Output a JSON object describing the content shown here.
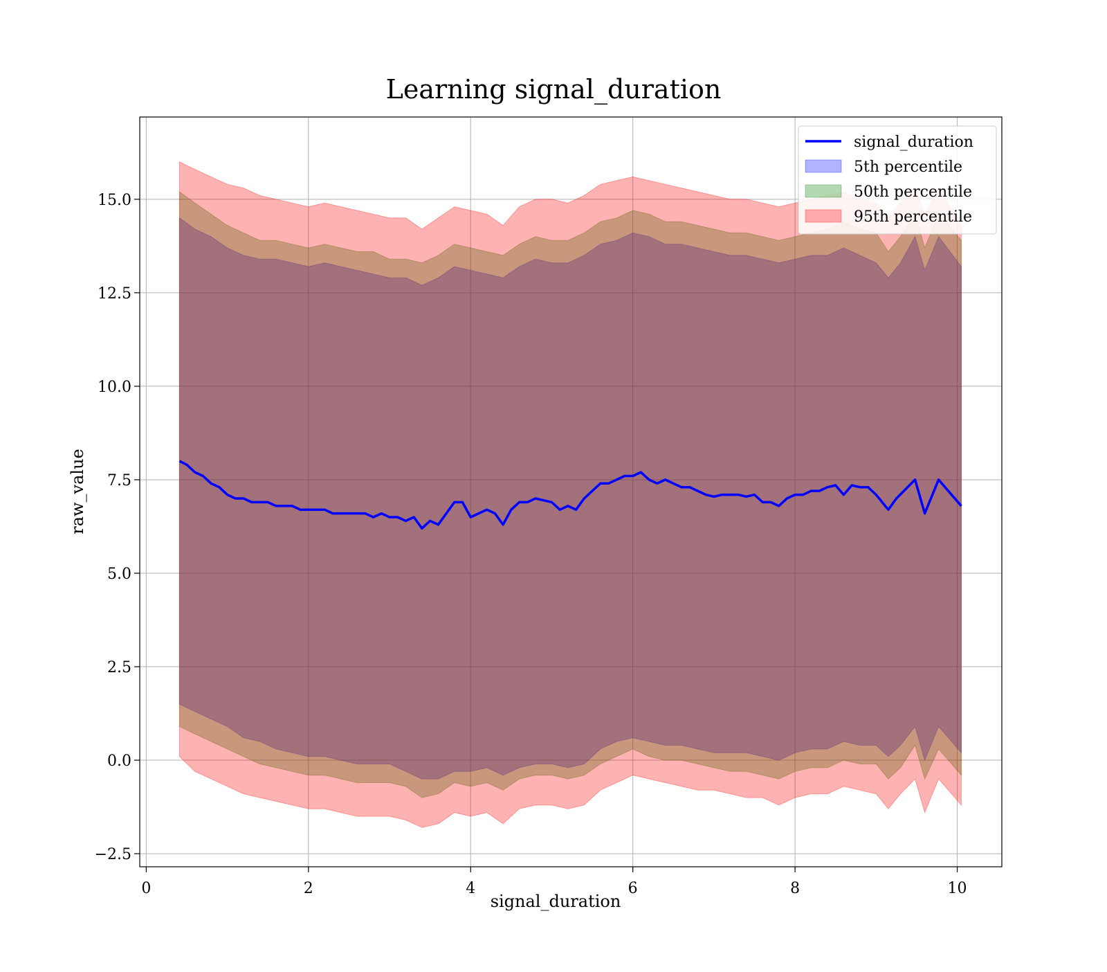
{
  "chart_data": {
    "type": "line",
    "title": "Learning signal_duration",
    "xlabel": "signal_duration",
    "ylabel": "raw_value",
    "xlim": [
      -0.08,
      10.55
    ],
    "ylim": [
      -2.85,
      17.2
    ],
    "xticks": [
      0,
      2,
      4,
      6,
      8,
      10
    ],
    "yticks": [
      -2.5,
      0.0,
      2.5,
      5.0,
      7.5,
      10.0,
      12.5,
      15.0
    ],
    "ytick_labels": [
      "−2.5",
      "0.0",
      "2.5",
      "5.0",
      "7.5",
      "10.0",
      "12.5",
      "15.0"
    ],
    "grid": true,
    "legend_position": "top-right",
    "legend": [
      {
        "label": "signal_duration",
        "kind": "line",
        "color": "#0000ff"
      },
      {
        "label": "5th percentile",
        "kind": "band",
        "color": "#0000ff"
      },
      {
        "label": "50th percentile",
        "kind": "band",
        "color": "#008000"
      },
      {
        "label": "95th percentile",
        "kind": "band",
        "color": "#ff0000"
      }
    ],
    "series": [
      {
        "name": "signal_duration",
        "color": "#0000ff",
        "x": [
          0.41,
          0.5,
          0.6,
          0.7,
          0.8,
          0.9,
          1.0,
          1.1,
          1.2,
          1.3,
          1.4,
          1.5,
          1.6,
          1.7,
          1.8,
          1.9,
          2.0,
          2.1,
          2.2,
          2.3,
          2.4,
          2.5,
          2.6,
          2.7,
          2.8,
          2.9,
          3.0,
          3.1,
          3.2,
          3.3,
          3.4,
          3.5,
          3.6,
          3.7,
          3.8,
          3.9,
          4.0,
          4.1,
          4.2,
          4.3,
          4.4,
          4.5,
          4.6,
          4.7,
          4.8,
          4.9,
          5.0,
          5.1,
          5.2,
          5.3,
          5.4,
          5.5,
          5.6,
          5.7,
          5.8,
          5.9,
          6.0,
          6.1,
          6.2,
          6.3,
          6.4,
          6.5,
          6.6,
          6.7,
          6.8,
          6.9,
          7.0,
          7.1,
          7.2,
          7.3,
          7.4,
          7.5,
          7.6,
          7.7,
          7.8,
          7.9,
          8.0,
          8.1,
          8.2,
          8.3,
          8.4,
          8.5,
          8.6,
          8.7,
          8.8,
          8.9,
          9.0,
          9.15,
          9.25,
          9.48,
          9.6,
          9.77,
          10.05
        ],
        "values": [
          8.0,
          7.9,
          7.7,
          7.6,
          7.4,
          7.3,
          7.1,
          7.0,
          7.0,
          6.9,
          6.9,
          6.9,
          6.8,
          6.8,
          6.8,
          6.7,
          6.7,
          6.7,
          6.7,
          6.6,
          6.6,
          6.6,
          6.6,
          6.6,
          6.5,
          6.6,
          6.5,
          6.5,
          6.4,
          6.5,
          6.2,
          6.4,
          6.3,
          6.6,
          6.9,
          6.9,
          6.5,
          6.6,
          6.7,
          6.6,
          6.3,
          6.7,
          6.9,
          6.9,
          7.0,
          6.95,
          6.9,
          6.7,
          6.8,
          6.7,
          7.0,
          7.2,
          7.4,
          7.4,
          7.5,
          7.6,
          7.6,
          7.7,
          7.5,
          7.4,
          7.5,
          7.4,
          7.3,
          7.3,
          7.2,
          7.1,
          7.05,
          7.1,
          7.1,
          7.1,
          7.05,
          7.1,
          6.9,
          6.9,
          6.8,
          7.0,
          7.1,
          7.1,
          7.2,
          7.2,
          7.3,
          7.35,
          7.1,
          7.35,
          7.3,
          7.3,
          7.1,
          6.7,
          7.0,
          7.5,
          6.6,
          7.5,
          6.8
        ]
      }
    ],
    "bands": [
      {
        "name": "5th percentile",
        "color": "#0000ff",
        "opacity": 0.3,
        "x": [
          0.41,
          0.6,
          0.8,
          1.0,
          1.2,
          1.4,
          1.6,
          1.8,
          2.0,
          2.2,
          2.4,
          2.6,
          2.8,
          3.0,
          3.2,
          3.4,
          3.6,
          3.8,
          4.0,
          4.2,
          4.4,
          4.6,
          4.8,
          5.0,
          5.2,
          5.4,
          5.6,
          5.8,
          6.0,
          6.2,
          6.4,
          6.6,
          6.8,
          7.0,
          7.2,
          7.4,
          7.6,
          7.8,
          8.0,
          8.2,
          8.4,
          8.6,
          8.8,
          9.0,
          9.15,
          9.3,
          9.48,
          9.6,
          9.77,
          10.05
        ],
        "lower": [
          1.5,
          1.3,
          1.1,
          0.9,
          0.6,
          0.5,
          0.3,
          0.2,
          0.1,
          0.1,
          0.0,
          -0.1,
          -0.1,
          -0.1,
          -0.3,
          -0.5,
          -0.5,
          -0.3,
          -0.3,
          -0.2,
          -0.4,
          -0.2,
          -0.1,
          -0.1,
          -0.2,
          -0.1,
          0.3,
          0.5,
          0.6,
          0.5,
          0.4,
          0.4,
          0.3,
          0.2,
          0.2,
          0.2,
          0.1,
          0.0,
          0.2,
          0.3,
          0.3,
          0.5,
          0.4,
          0.4,
          0.1,
          0.4,
          0.9,
          0.0,
          0.9,
          0.2
        ],
        "upper": [
          14.5,
          14.2,
          14.0,
          13.7,
          13.5,
          13.4,
          13.4,
          13.3,
          13.2,
          13.3,
          13.2,
          13.1,
          13.0,
          12.9,
          12.9,
          12.7,
          12.9,
          13.2,
          13.1,
          13.0,
          12.9,
          13.2,
          13.4,
          13.3,
          13.3,
          13.5,
          13.8,
          13.9,
          14.1,
          14.0,
          13.8,
          13.8,
          13.7,
          13.6,
          13.5,
          13.5,
          13.4,
          13.3,
          13.4,
          13.5,
          13.5,
          13.7,
          13.5,
          13.3,
          12.9,
          13.3,
          14.0,
          13.1,
          14.0,
          13.2
        ]
      },
      {
        "name": "50th percentile",
        "color": "#008000",
        "opacity": 0.3,
        "x": [
          0.41,
          0.6,
          0.8,
          1.0,
          1.2,
          1.4,
          1.6,
          1.8,
          2.0,
          2.2,
          2.4,
          2.6,
          2.8,
          3.0,
          3.2,
          3.4,
          3.6,
          3.8,
          4.0,
          4.2,
          4.4,
          4.6,
          4.8,
          5.0,
          5.2,
          5.4,
          5.6,
          5.8,
          6.0,
          6.2,
          6.4,
          6.6,
          6.8,
          7.0,
          7.2,
          7.4,
          7.6,
          7.8,
          8.0,
          8.2,
          8.4,
          8.6,
          8.8,
          9.0,
          9.15,
          9.3,
          9.48,
          9.6,
          9.77,
          10.05
        ],
        "lower": [
          0.9,
          0.7,
          0.5,
          0.3,
          0.1,
          -0.1,
          -0.2,
          -0.3,
          -0.4,
          -0.4,
          -0.5,
          -0.6,
          -0.6,
          -0.6,
          -0.7,
          -1.0,
          -0.9,
          -0.6,
          -0.7,
          -0.6,
          -0.8,
          -0.5,
          -0.4,
          -0.4,
          -0.5,
          -0.4,
          -0.1,
          0.1,
          0.3,
          0.1,
          0.0,
          0.0,
          -0.1,
          -0.2,
          -0.3,
          -0.3,
          -0.4,
          -0.5,
          -0.3,
          -0.2,
          -0.2,
          0.0,
          -0.1,
          -0.1,
          -0.5,
          -0.2,
          0.4,
          -0.5,
          0.3,
          -0.4
        ],
        "upper": [
          15.2,
          14.9,
          14.6,
          14.3,
          14.1,
          13.9,
          13.9,
          13.8,
          13.7,
          13.8,
          13.7,
          13.6,
          13.6,
          13.4,
          13.4,
          13.3,
          13.5,
          13.8,
          13.7,
          13.6,
          13.5,
          13.8,
          14.0,
          13.9,
          13.9,
          14.1,
          14.4,
          14.5,
          14.7,
          14.6,
          14.4,
          14.4,
          14.3,
          14.2,
          14.1,
          14.1,
          14.0,
          13.9,
          14.0,
          14.1,
          14.2,
          14.4,
          14.2,
          14.1,
          13.6,
          14.0,
          14.6,
          13.7,
          14.6,
          13.9
        ]
      },
      {
        "name": "95th percentile",
        "color": "#ff0000",
        "opacity": 0.3,
        "x": [
          0.41,
          0.6,
          0.8,
          1.0,
          1.2,
          1.4,
          1.6,
          1.8,
          2.0,
          2.2,
          2.4,
          2.6,
          2.8,
          3.0,
          3.2,
          3.4,
          3.6,
          3.8,
          4.0,
          4.2,
          4.4,
          4.6,
          4.8,
          5.0,
          5.2,
          5.4,
          5.6,
          5.8,
          6.0,
          6.2,
          6.4,
          6.6,
          6.8,
          7.0,
          7.2,
          7.4,
          7.6,
          7.8,
          8.0,
          8.2,
          8.4,
          8.6,
          8.8,
          9.0,
          9.15,
          9.3,
          9.48,
          9.6,
          9.77,
          10.05
        ],
        "lower": [
          0.1,
          -0.3,
          -0.5,
          -0.7,
          -0.9,
          -1.0,
          -1.1,
          -1.2,
          -1.3,
          -1.3,
          -1.4,
          -1.5,
          -1.5,
          -1.5,
          -1.6,
          -1.8,
          -1.7,
          -1.4,
          -1.5,
          -1.4,
          -1.7,
          -1.3,
          -1.2,
          -1.2,
          -1.3,
          -1.2,
          -0.8,
          -0.6,
          -0.4,
          -0.5,
          -0.6,
          -0.7,
          -0.8,
          -0.8,
          -0.9,
          -1.0,
          -1.0,
          -1.2,
          -1.0,
          -0.9,
          -0.9,
          -0.7,
          -0.8,
          -0.9,
          -1.3,
          -0.9,
          -0.5,
          -1.4,
          -0.5,
          -1.2
        ],
        "upper": [
          16.0,
          15.8,
          15.6,
          15.4,
          15.3,
          15.1,
          15.0,
          14.9,
          14.8,
          14.9,
          14.8,
          14.7,
          14.6,
          14.5,
          14.5,
          14.2,
          14.5,
          14.8,
          14.7,
          14.6,
          14.3,
          14.8,
          15.0,
          15.0,
          14.9,
          15.1,
          15.4,
          15.5,
          15.6,
          15.5,
          15.4,
          15.3,
          15.2,
          15.1,
          15.0,
          15.0,
          14.9,
          14.8,
          14.9,
          15.0,
          15.1,
          15.2,
          15.0,
          14.9,
          14.5,
          14.9,
          15.3,
          14.6,
          15.3,
          14.3
        ]
      }
    ]
  }
}
